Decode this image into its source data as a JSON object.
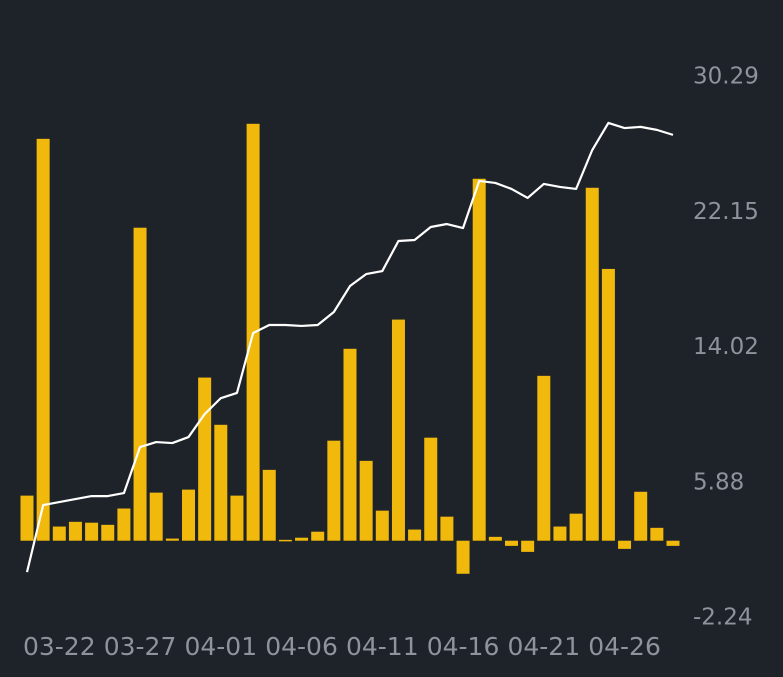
{
  "chart_data": {
    "type": "bar",
    "categories": [
      null,
      null,
      "03-22",
      null,
      null,
      null,
      null,
      "03-27",
      null,
      null,
      null,
      null,
      "04-01",
      null,
      null,
      null,
      null,
      "04-06",
      null,
      null,
      null,
      null,
      "04-11",
      null,
      null,
      null,
      null,
      "04-16",
      null,
      null,
      null,
      null,
      "04-21",
      null,
      null,
      null,
      null,
      "04-26",
      null,
      null,
      null
    ],
    "series": [
      {
        "type": "bar",
        "color": "#f0b90b",
        "axis": "y",
        "values": [
          1.05,
          9.36,
          0.33,
          0.44,
          0.42,
          0.37,
          0.75,
          7.29,
          1.12,
          0.05,
          1.19,
          3.8,
          2.7,
          1.05,
          9.71,
          1.65,
          0.02,
          0.07,
          0.21,
          2.33,
          4.47,
          1.86,
          0.7,
          5.15,
          0.26,
          2.4,
          0.56,
          -0.77,
          8.43,
          0.09,
          -0.12,
          -0.26,
          3.84,
          0.33,
          0.63,
          8.22,
          6.33,
          -0.19,
          1.14,
          0.3,
          -0.12
        ]
      },
      {
        "type": "line",
        "color": "#ffffff",
        "axis": "y2",
        "values": [
          0.52,
          4.55,
          4.73,
          4.91,
          5.09,
          5.09,
          5.27,
          8.04,
          8.34,
          8.28,
          8.64,
          10.02,
          10.98,
          11.29,
          14.89,
          15.38,
          15.38,
          15.32,
          15.38,
          16.16,
          17.72,
          18.44,
          18.62,
          20.43,
          20.49,
          21.27,
          21.45,
          21.21,
          24.04,
          23.92,
          23.56,
          23.02,
          23.86,
          23.68,
          23.56,
          25.9,
          27.53,
          27.22,
          27.29,
          27.11,
          26.81
        ]
      }
    ],
    "ylim": [
      -1.8,
      10.8
    ],
    "y2lim": [
      -2.24,
      30.29
    ],
    "y2ticks": [
      30.29,
      22.15,
      14.02,
      5.88,
      -2.24
    ],
    "grid": true
  }
}
